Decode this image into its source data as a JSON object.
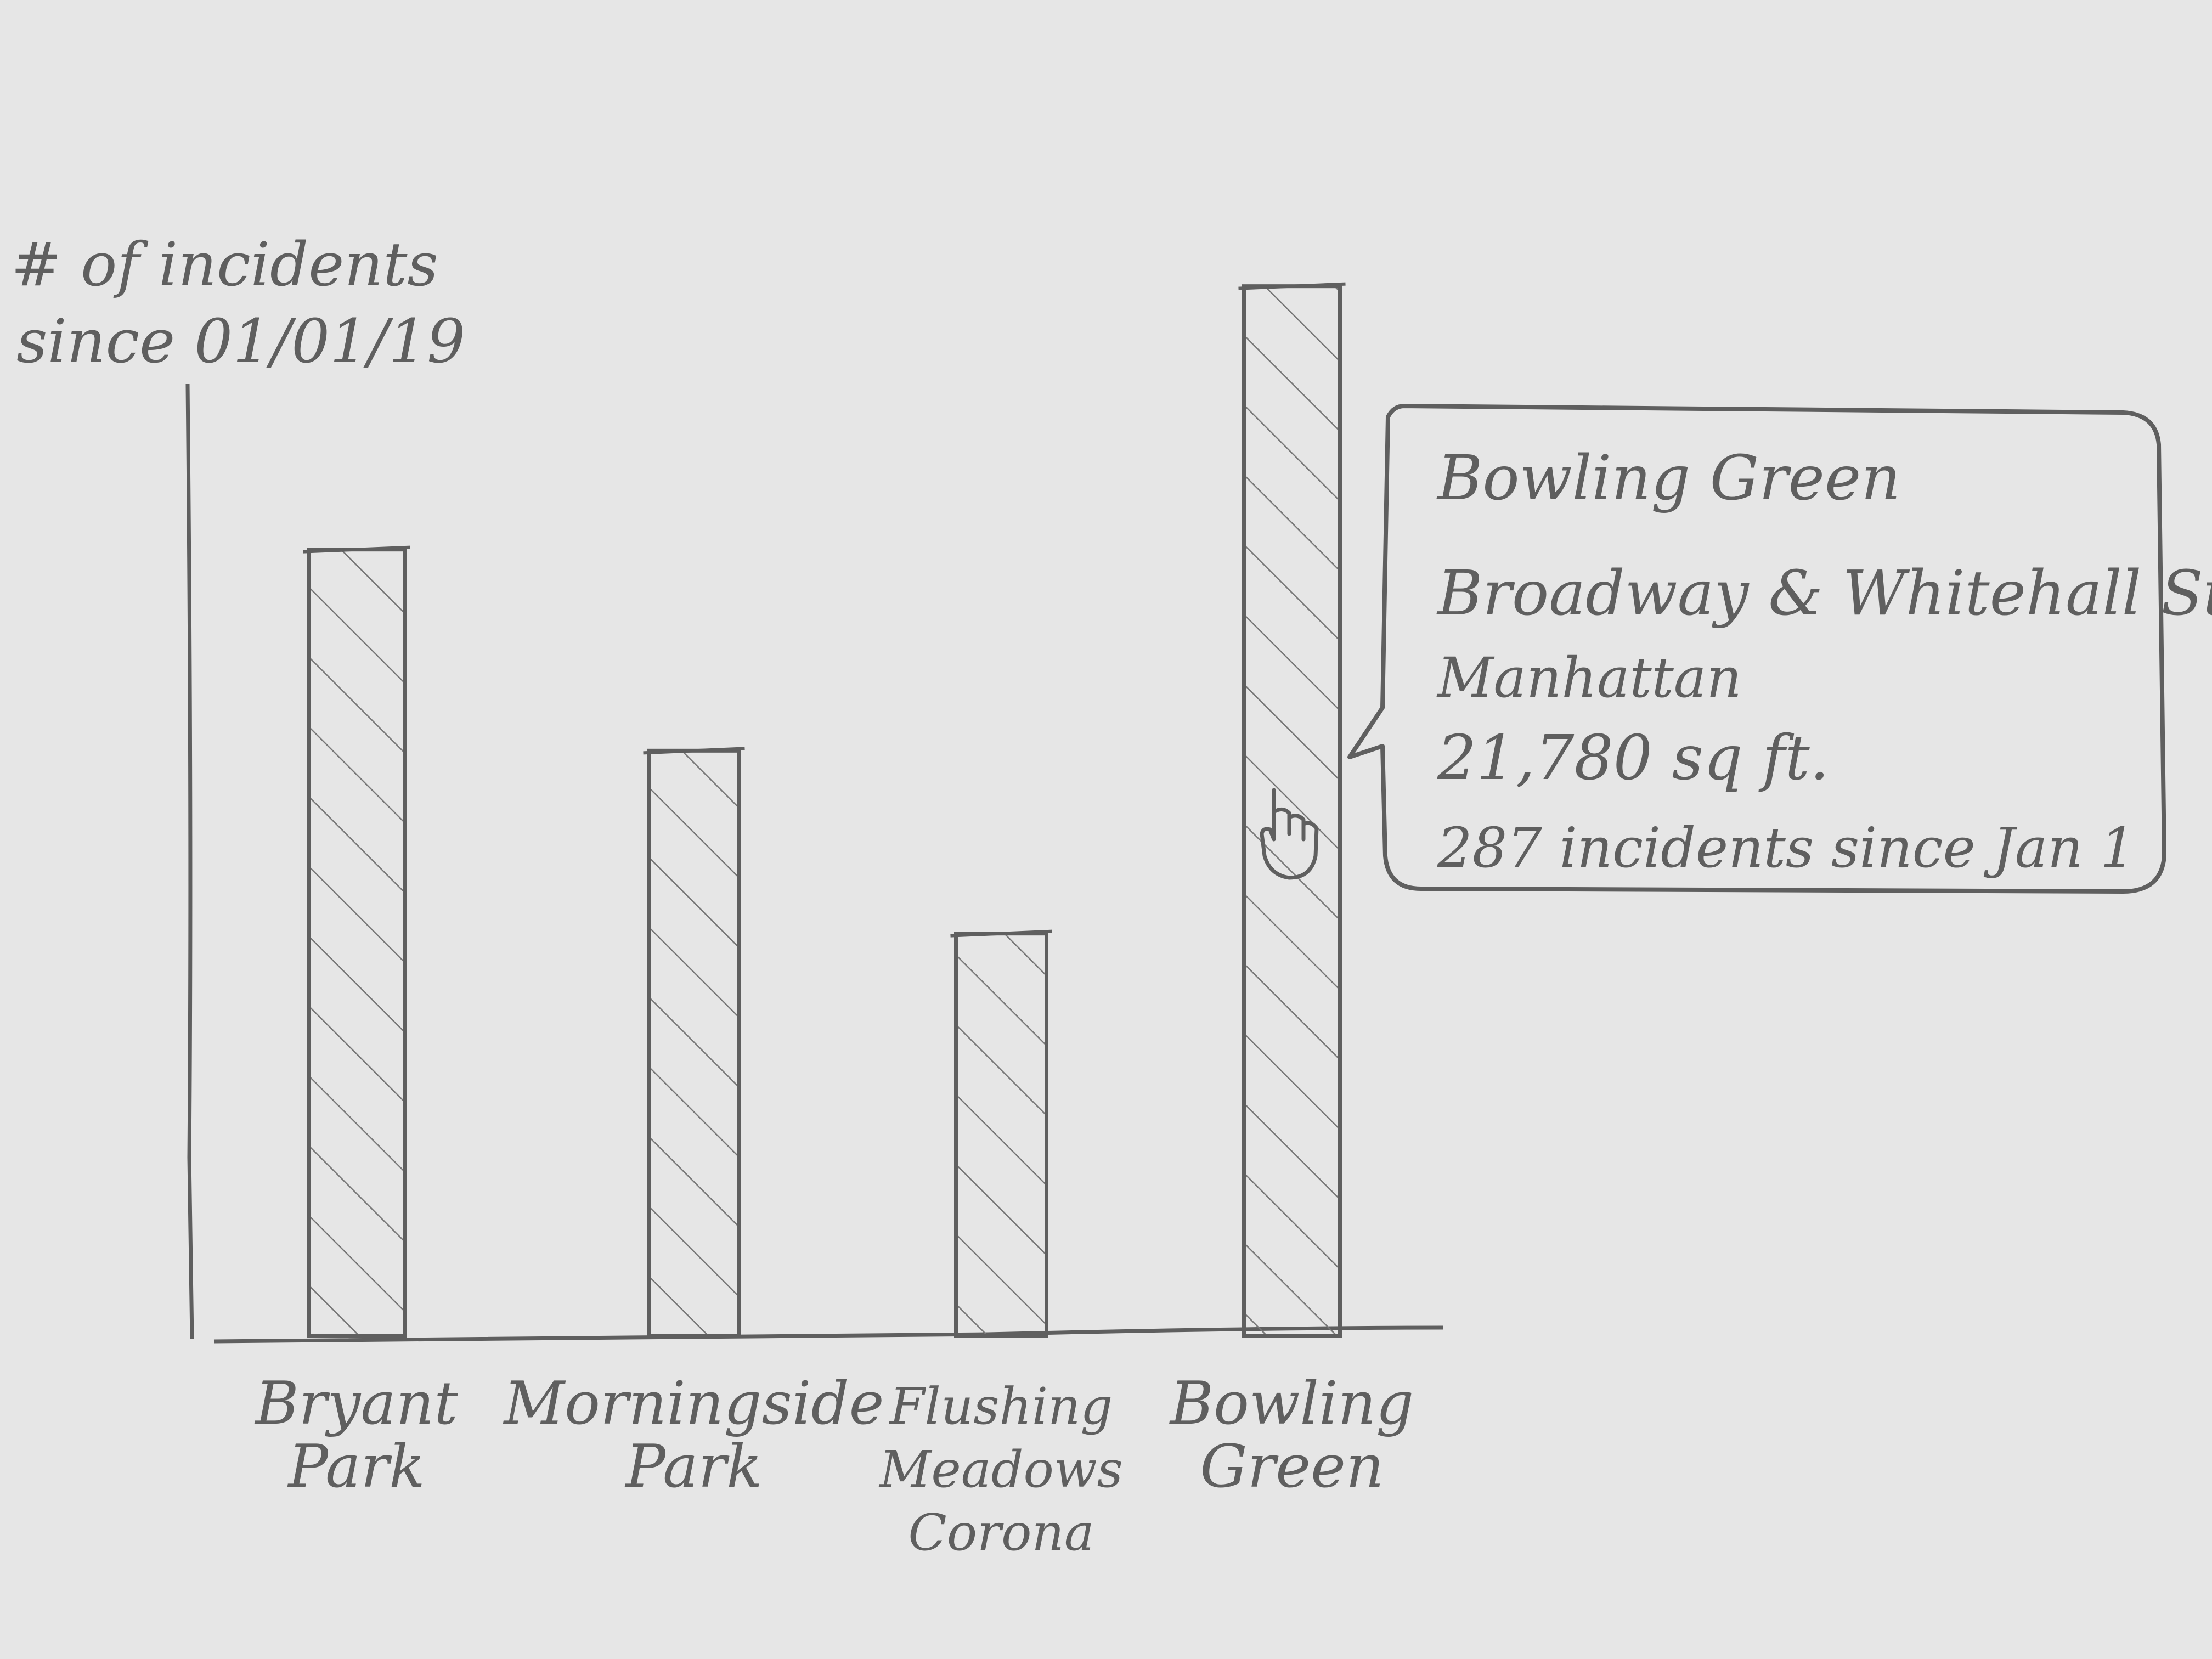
{
  "chart_data": {
    "type": "bar",
    "ylabel_lines": [
      "# of incidents",
      "since 01/01/19"
    ],
    "xlabel": "",
    "categories": [
      [
        "Bryant",
        "Park"
      ],
      [
        "Morningside",
        "Park"
      ],
      [
        "Flushing",
        "Meadows",
        "Corona"
      ],
      [
        "Bowling",
        "Green"
      ]
    ],
    "values": [
      215,
      160,
      110,
      287
    ],
    "ylim": [
      0,
      300
    ],
    "grid": false,
    "legend": "none"
  },
  "tooltip": {
    "lines": [
      "Bowling Green",
      "Broadway & Whitehall St.",
      "Manhattan",
      "21,780 sq ft.",
      "287 incidents since Jan 1"
    ],
    "cursor_icon": "hand-pointer-icon"
  },
  "colors": {
    "paper": "#e6e6e6",
    "pencil": "#5f5f5f"
  }
}
